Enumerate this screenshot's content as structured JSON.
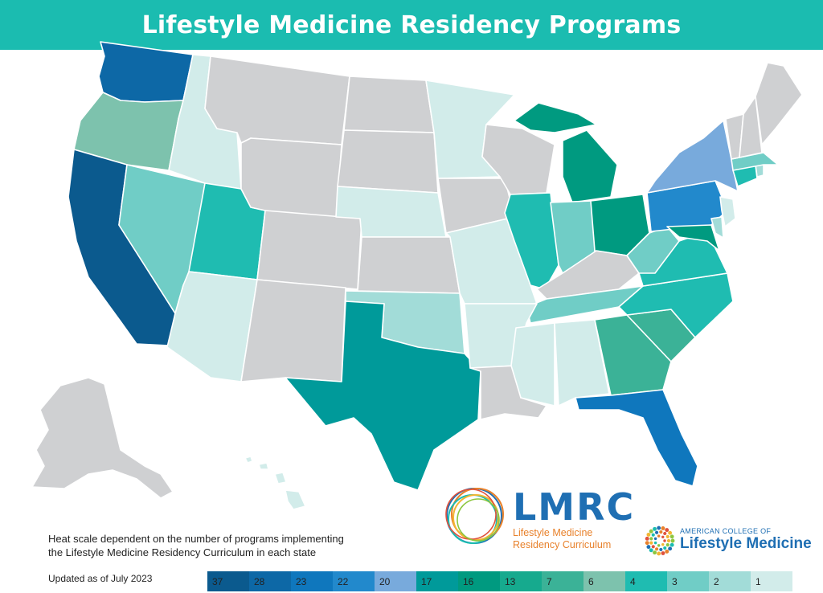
{
  "title": "Lifestyle Medicine Residency Programs",
  "note_line1": "Heat scale dependent on the number of programs implementing",
  "note_line2": "the Lifestyle Medicine Residency Curriculum in each state",
  "updated": "Updated as of July 2023",
  "legend": [
    {
      "label": "37",
      "color": "#0b5a8e"
    },
    {
      "label": "28",
      "color": "#0d68a6"
    },
    {
      "label": "23",
      "color": "#0f77bd"
    },
    {
      "label": "22",
      "color": "#2289cc"
    },
    {
      "label": "20",
      "color": "#78aadc"
    },
    {
      "label": "17",
      "color": "#009a9a"
    },
    {
      "label": "16",
      "color": "#009a80"
    },
    {
      "label": "13",
      "color": "#16aa8e"
    },
    {
      "label": "7",
      "color": "#3bb297"
    },
    {
      "label": "6",
      "color": "#7dc2ad"
    },
    {
      "label": "4",
      "color": "#1fbcb1"
    },
    {
      "label": "3",
      "color": "#70cdc6"
    },
    {
      "label": "2",
      "color": "#a2dcd8"
    },
    {
      "label": "1",
      "color": "#d2ecea"
    }
  ],
  "colors": {
    "none": "#cfd0d2",
    "banner": "#1bbcb0"
  },
  "logos": {
    "lmrc": "LMRC",
    "lmrc_sub1": "Lifestyle Medicine",
    "lmrc_sub2": "Residency Curriculum",
    "acolm_top": "AMERICAN COLLEGE OF",
    "acolm_main": "Lifestyle Medicine"
  }
}
